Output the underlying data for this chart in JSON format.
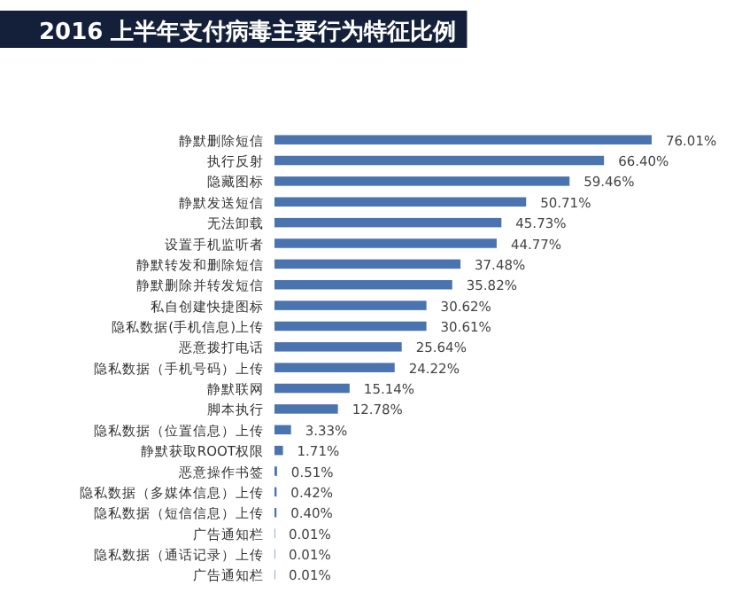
{
  "chart_data": {
    "type": "bar",
    "orientation": "horizontal",
    "title": "2016 上半年支付病毒主要行为特征比例",
    "categories": [
      "静默删除短信",
      "执行反射",
      "隐藏图标",
      "静默发送短信",
      "无法卸载",
      "设置手机监听者",
      "静默转发和删除短信",
      "静默删除并转发短信",
      "私自创建快捷图标",
      "隐私数据(手机信息)上传",
      "恶意拨打电话",
      "隐私数据（手机号码）上传",
      "静默联网",
      "脚本执行",
      "隐私数据（位置信息）上传",
      "静默获取ROOT权限",
      "恶意操作书签",
      "隐私数据（多媒体信息）上传",
      "隐私数据（短信信息）上传",
      "广告通知栏",
      "隐私数据（通话记录）上传",
      "广告通知栏"
    ],
    "values": [
      76.01,
      66.4,
      59.46,
      50.71,
      45.73,
      44.77,
      37.48,
      35.82,
      30.62,
      30.61,
      25.64,
      24.22,
      15.14,
      12.78,
      3.33,
      1.71,
      0.51,
      0.42,
      0.4,
      0.01,
      0.01,
      0.01
    ],
    "value_labels": [
      "76.01%",
      "66.40%",
      "59.46%",
      "50.71%",
      "45.73%",
      "44.77%",
      "37.48%",
      "35.82%",
      "30.62%",
      "30.61%",
      "25.64%",
      "24.22%",
      "15.14%",
      "12.78%",
      "3.33%",
      "1.71%",
      "0.51%",
      "0.42%",
      "0.40%",
      "0.01%",
      "0.01%",
      "0.01%"
    ],
    "color": "#4a74b0",
    "xlim": [
      0,
      76.01
    ],
    "tick_labels": "y"
  }
}
